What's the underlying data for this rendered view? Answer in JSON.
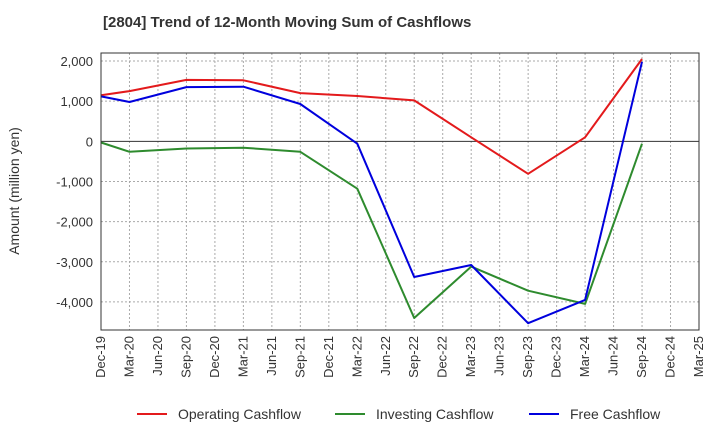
{
  "chart_data": {
    "type": "line",
    "title": "[2804]  Trend of 12-Month Moving Sum of Cashflows",
    "xlabel": "",
    "ylabel": "Amount (million yen)",
    "ylim": [
      -4700,
      2200
    ],
    "yticks": [
      2000,
      1000,
      0,
      -1000,
      -2000,
      -3000,
      -4000
    ],
    "ytick_labels": [
      "2,000",
      "1,000",
      "0",
      "-1,000",
      "-2,000",
      "-3,000",
      "-4,000"
    ],
    "categories": [
      "Dec-19",
      "Mar-20",
      "Jun-20",
      "Sep-20",
      "Dec-20",
      "Mar-21",
      "Jun-21",
      "Sep-21",
      "Dec-21",
      "Mar-22",
      "Jun-22",
      "Sep-22",
      "Dec-22",
      "Mar-23",
      "Jun-23",
      "Sep-23",
      "Dec-23",
      "Mar-24",
      "Jun-24",
      "Sep-24",
      "Dec-24",
      "Mar-25"
    ],
    "grid": true,
    "legend_position": "bottom",
    "series": [
      {
        "name": "Operating Cashflow",
        "color": "#e31a1c",
        "values": [
          1150,
          1250,
          null,
          1530,
          null,
          1520,
          null,
          1200,
          null,
          1130,
          null,
          1020,
          null,
          100,
          null,
          -810,
          null,
          100,
          null,
          2050,
          null,
          null
        ]
      },
      {
        "name": "Investing Cashflow",
        "color": "#2e8b2e",
        "values": [
          -30,
          -260,
          null,
          -180,
          null,
          -160,
          null,
          -260,
          null,
          -1180,
          null,
          -4400,
          null,
          -3120,
          null,
          -3720,
          null,
          -4050,
          null,
          -60,
          null,
          null
        ]
      },
      {
        "name": "Free Cashflow",
        "color": "#0000dd",
        "values": [
          1120,
          980,
          null,
          1350,
          null,
          1360,
          null,
          930,
          null,
          -60,
          null,
          -3380,
          null,
          -3080,
          null,
          -4530,
          null,
          -3950,
          null,
          1980,
          null,
          null
        ]
      }
    ]
  }
}
